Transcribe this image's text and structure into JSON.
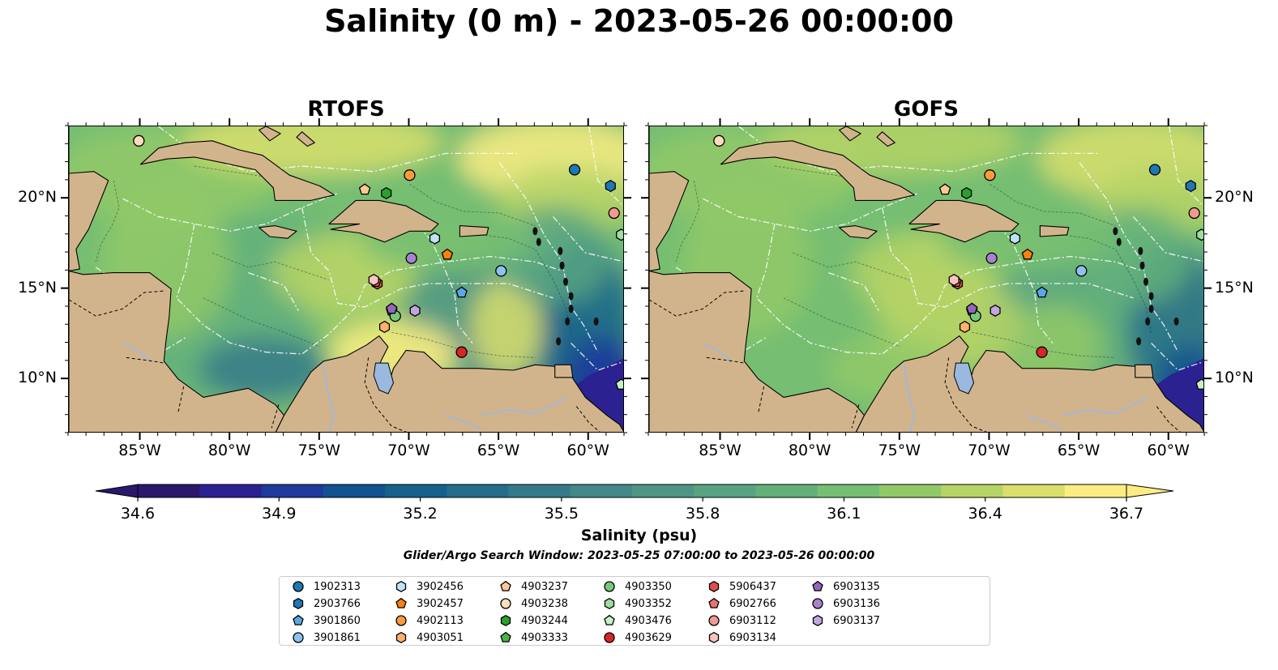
{
  "title": "Salinity (0 m) - 2023-05-26 00:00:00",
  "panels": [
    {
      "id": "left",
      "title": "RTOFS"
    },
    {
      "id": "right",
      "title": "GOFS"
    }
  ],
  "axes": {
    "lon_ticks": [
      "85°W",
      "80°W",
      "75°W",
      "70°W",
      "65°W",
      "60°W"
    ],
    "lon_values": [
      -85,
      -80,
      -75,
      -70,
      -65,
      -60
    ],
    "lat_ticks": [
      "10°N",
      "15°N",
      "20°N"
    ],
    "lat_values": [
      10,
      15,
      20
    ],
    "lon_range": [
      -89,
      -58
    ],
    "lat_range": [
      7,
      24
    ]
  },
  "colorbar": {
    "label": "Salinity (psu)",
    "ticks": [
      "34.6",
      "34.9",
      "35.2",
      "35.5",
      "35.8",
      "36.1",
      "36.4",
      "36.7"
    ],
    "range": [
      34.6,
      36.7
    ],
    "colormap": "haline",
    "colors": [
      "#2a186c",
      "#2b2191",
      "#1e3a9b",
      "#11518f",
      "#14628b",
      "#266d8a",
      "#357a8a",
      "#438788",
      "#4e9586",
      "#58a382",
      "#63b07b",
      "#75be72",
      "#92c967",
      "#b6d466",
      "#dadf6c",
      "#fbed82"
    ]
  },
  "search_window": "Glider/Argo Search Window: 2023-05-25 07:00:00 to 2023-05-26 00:00:00",
  "colors": {
    "land": "#d2b48c",
    "lakes": "#9bb8df",
    "rivers": "#a3b8d6",
    "deep_low": "#2a186c",
    "contour_white": "#ffffff"
  },
  "legend": [
    {
      "id": "1902313",
      "marker": "circle",
      "color": "#1f77b4"
    },
    {
      "id": "2903766",
      "marker": "hexagon",
      "color": "#1f77b4"
    },
    {
      "id": "3901860",
      "marker": "pentagon",
      "color": "#5aa9e6"
    },
    {
      "id": "3901861",
      "marker": "circle",
      "color": "#8ec2ee"
    },
    {
      "id": "3902456",
      "marker": "hexagon",
      "color": "#bfe2f7"
    },
    {
      "id": "3902457",
      "marker": "pentagon",
      "color": "#ff7f0e"
    },
    {
      "id": "4902113",
      "marker": "circle",
      "color": "#ff9a3d"
    },
    {
      "id": "4903051",
      "marker": "hexagon",
      "color": "#ffb26b"
    },
    {
      "id": "4903237",
      "marker": "pentagon",
      "color": "#ffc896"
    },
    {
      "id": "4903238",
      "marker": "circle",
      "color": "#ffdcbc"
    },
    {
      "id": "4903244",
      "marker": "hexagon",
      "color": "#2ca02c"
    },
    {
      "id": "4903333",
      "marker": "pentagon",
      "color": "#4cb34c"
    },
    {
      "id": "4903350",
      "marker": "circle",
      "color": "#78c878"
    },
    {
      "id": "4903352",
      "marker": "hexagon",
      "color": "#9fdc9f"
    },
    {
      "id": "4903476",
      "marker": "pentagon",
      "color": "#c8f0c8"
    },
    {
      "id": "4903629",
      "marker": "circle",
      "color": "#d62728"
    },
    {
      "id": "5906437",
      "marker": "hexagon",
      "color": "#de4d4d"
    },
    {
      "id": "6902766",
      "marker": "pentagon",
      "color": "#e87272"
    },
    {
      "id": "6903112",
      "marker": "circle",
      "color": "#f09a94"
    },
    {
      "id": "6903134",
      "marker": "hexagon",
      "color": "#f8c4bd"
    },
    {
      "id": "6903135",
      "marker": "pentagon",
      "color": "#9467bd"
    },
    {
      "id": "6903136",
      "marker": "circle",
      "color": "#a982cf"
    },
    {
      "id": "6903137",
      "marker": "hexagon",
      "color": "#c3a6e0"
    }
  ],
  "floats": [
    {
      "id": "1902313",
      "lon": -60.8,
      "lat": 21.6
    },
    {
      "id": "2903766",
      "lon": -58.8,
      "lat": 20.7
    },
    {
      "id": "3901860",
      "lon": -67.1,
      "lat": 14.8
    },
    {
      "id": "3901861",
      "lon": -64.9,
      "lat": 16.0
    },
    {
      "id": "3902456",
      "lon": -68.6,
      "lat": 17.8
    },
    {
      "id": "3902457",
      "lon": -67.9,
      "lat": 16.9
    },
    {
      "id": "4902113",
      "lon": -70.0,
      "lat": 21.3
    },
    {
      "id": "4903051",
      "lon": -71.4,
      "lat": 12.9
    },
    {
      "id": "4903237",
      "lon": -72.5,
      "lat": 20.5
    },
    {
      "id": "4903238",
      "lon": -85.1,
      "lat": 23.2
    },
    {
      "id": "4903244",
      "lon": -71.3,
      "lat": 20.3
    },
    {
      "id": "4903333",
      "lon": -71.0,
      "lat": 13.8
    },
    {
      "id": "4903350",
      "lon": -70.8,
      "lat": 13.5
    },
    {
      "id": "4903352",
      "lon": -58.2,
      "lat": 18.0
    },
    {
      "id": "4903476",
      "lon": -58.2,
      "lat": 9.7
    },
    {
      "id": "4903629",
      "lon": -67.1,
      "lat": 11.5
    },
    {
      "id": "5906437",
      "lon": -71.8,
      "lat": 15.3
    },
    {
      "id": "6902766",
      "lon": -71.9,
      "lat": 15.4
    },
    {
      "id": "6903112",
      "lon": -58.6,
      "lat": 19.2
    },
    {
      "id": "6903134",
      "lon": -72.0,
      "lat": 15.5
    },
    {
      "id": "6903135",
      "lon": -71.0,
      "lat": 13.9
    },
    {
      "id": "6903136",
      "lon": -69.9,
      "lat": 16.7
    },
    {
      "id": "6903137",
      "lon": -69.7,
      "lat": 13.8
    }
  ]
}
